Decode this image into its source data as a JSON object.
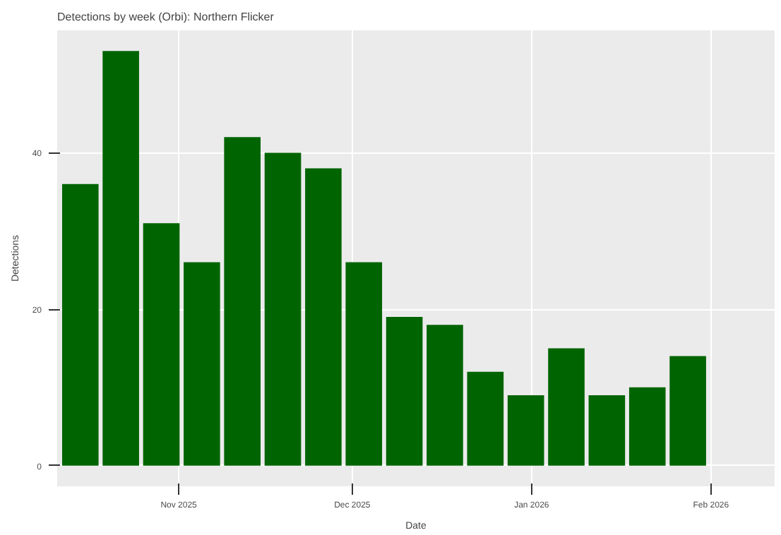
{
  "chart_data": {
    "type": "bar",
    "title": "Detections by week (Orbi): Northern Flicker",
    "xlabel": "Date",
    "ylabel": "Detections",
    "x": [
      "2025-10-15",
      "2025-10-22",
      "2025-10-29",
      "2025-11-05",
      "2025-11-12",
      "2025-11-19",
      "2025-11-26",
      "2025-12-03",
      "2025-12-10",
      "2025-12-17",
      "2025-12-24",
      "2025-12-31",
      "2026-01-07",
      "2026-01-14",
      "2026-01-21",
      "2026-01-28"
    ],
    "series": [
      {
        "color": "#006400",
        "values": [
          36,
          53,
          31,
          26,
          42,
          40,
          38,
          26,
          19,
          18,
          12,
          9,
          15,
          9,
          10,
          14
        ]
      }
    ],
    "xlim": [
      "2025-10-11",
      "2026-02-12"
    ],
    "xticks": [
      {
        "value": "2025-11-01",
        "label": "Nov 2025"
      },
      {
        "value": "2025-12-01",
        "label": "Dec 2025"
      },
      {
        "value": "2026-01-01",
        "label": "Jan 2026"
      },
      {
        "value": "2026-02-01",
        "label": "Feb 2026"
      }
    ],
    "ylim": [
      -2.65,
      55.65
    ],
    "yticks": [
      0,
      20,
      40
    ],
    "grid": true
  }
}
